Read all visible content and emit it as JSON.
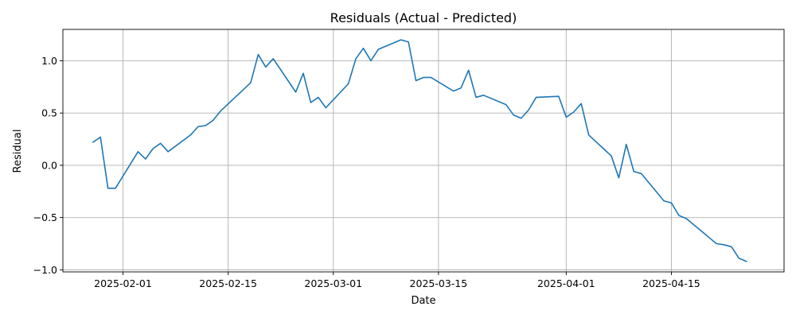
{
  "chart_data": {
    "type": "line",
    "title": "Residuals (Actual - Predicted)",
    "xlabel": "Date",
    "ylabel": "Residual",
    "xlim": [
      "2025-01-24",
      "2025-04-30"
    ],
    "ylim": [
      -1.02,
      1.3
    ],
    "grid": true,
    "legend": "none",
    "x_ticks": [
      {
        "value": "2025-02-01",
        "label": "2025-02-01"
      },
      {
        "value": "2025-02-15",
        "label": "2025-02-15"
      },
      {
        "value": "2025-03-01",
        "label": "2025-03-01"
      },
      {
        "value": "2025-03-15",
        "label": "2025-03-15"
      },
      {
        "value": "2025-04-01",
        "label": "2025-04-01"
      },
      {
        "value": "2025-04-15",
        "label": "2025-04-15"
      }
    ],
    "y_ticks": [
      {
        "value": -1.0,
        "label": "−1.0"
      },
      {
        "value": -0.5,
        "label": "−0.5"
      },
      {
        "value": 0.0,
        "label": "0.0"
      },
      {
        "value": 0.5,
        "label": "0.5"
      },
      {
        "value": 1.0,
        "label": "1.0"
      }
    ],
    "series": [
      {
        "color": "#1f77b4",
        "x": [
          "2025-01-28",
          "2025-01-29",
          "2025-01-30",
          "2025-01-31",
          "2025-02-03",
          "2025-02-04",
          "2025-02-05",
          "2025-02-06",
          "2025-02-07",
          "2025-02-10",
          "2025-02-11",
          "2025-02-12",
          "2025-02-13",
          "2025-02-14",
          "2025-02-18",
          "2025-02-19",
          "2025-02-20",
          "2025-02-21",
          "2025-02-24",
          "2025-02-25",
          "2025-02-26",
          "2025-02-27",
          "2025-02-28",
          "2025-03-03",
          "2025-03-04",
          "2025-03-05",
          "2025-03-06",
          "2025-03-07",
          "2025-03-10",
          "2025-03-11",
          "2025-03-12",
          "2025-03-13",
          "2025-03-14",
          "2025-03-17",
          "2025-03-18",
          "2025-03-19",
          "2025-03-20",
          "2025-03-21",
          "2025-03-24",
          "2025-03-25",
          "2025-03-26",
          "2025-03-27",
          "2025-03-28",
          "2025-03-31",
          "2025-04-01",
          "2025-04-02",
          "2025-04-03",
          "2025-04-04",
          "2025-04-07",
          "2025-04-08",
          "2025-04-09",
          "2025-04-10",
          "2025-04-11",
          "2025-04-14",
          "2025-04-15",
          "2025-04-16",
          "2025-04-17",
          "2025-04-21",
          "2025-04-22",
          "2025-04-23",
          "2025-04-24",
          "2025-04-25"
        ],
        "y": [
          0.22,
          0.27,
          -0.22,
          -0.22,
          0.13,
          0.06,
          0.16,
          0.21,
          0.13,
          0.29,
          0.37,
          0.38,
          0.43,
          0.52,
          0.79,
          1.06,
          0.94,
          1.02,
          0.7,
          0.88,
          0.6,
          0.65,
          0.55,
          0.78,
          1.02,
          1.12,
          1.0,
          1.11,
          1.2,
          1.18,
          0.81,
          0.84,
          0.84,
          0.71,
          0.74,
          0.91,
          0.65,
          0.67,
          0.58,
          0.48,
          0.45,
          0.53,
          0.65,
          0.66,
          0.46,
          0.51,
          0.59,
          0.29,
          0.09,
          -0.12,
          0.2,
          -0.06,
          -0.08,
          -0.34,
          -0.36,
          -0.48,
          -0.51,
          -0.75,
          -0.76,
          -0.78,
          -0.89,
          -0.92
        ]
      }
    ]
  }
}
